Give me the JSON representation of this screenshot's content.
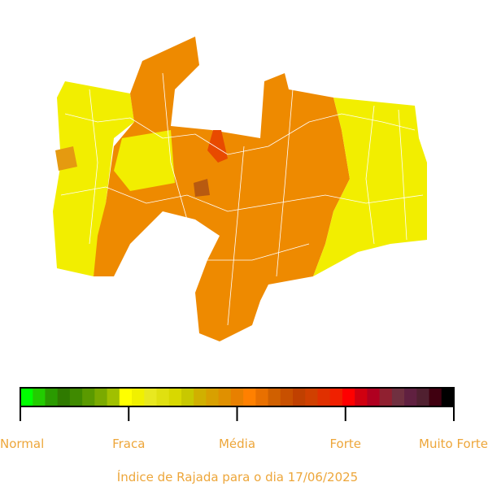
{
  "legend": {
    "colors": [
      "#00ff00",
      "#22cc00",
      "#2a9a00",
      "#2f7a00",
      "#3f8a00",
      "#5a9a00",
      "#7aaa00",
      "#a0c000",
      "#ffff00",
      "#f0f000",
      "#e8e820",
      "#e0e010",
      "#d8d800",
      "#c8c800",
      "#d0b000",
      "#d8a000",
      "#e09000",
      "#e88000",
      "#ff8000",
      "#e87000",
      "#d06000",
      "#c85000",
      "#c04000",
      "#d04000",
      "#e03000",
      "#f02000",
      "#ff0000",
      "#d00010",
      "#b00020",
      "#902030",
      "#703040",
      "#602040",
      "#502030",
      "#400010",
      "#000000"
    ],
    "labels": [
      "Normal",
      "Fraca",
      "Média",
      "Forte",
      "Muito Forte"
    ]
  },
  "caption": "Índice de Rajada para o dia 17/06/2025"
}
